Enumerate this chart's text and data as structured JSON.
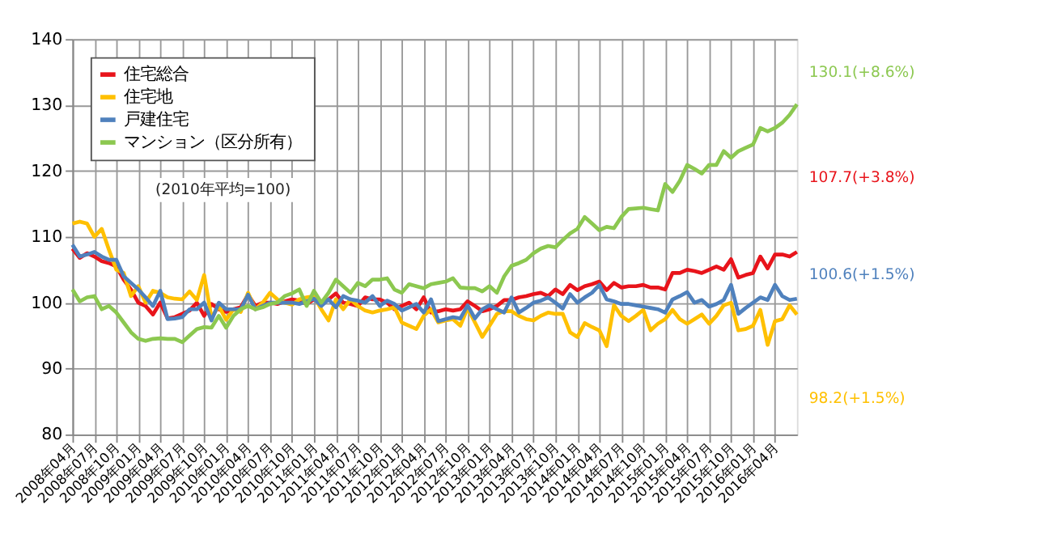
{
  "chart_data": {
    "type": "line",
    "categories": [
      "2008年04月",
      null,
      null,
      "2008年07月",
      null,
      null,
      "2008年10月",
      null,
      null,
      "2009年01月",
      null,
      null,
      "2009年04月",
      null,
      null,
      "2009年07月",
      null,
      null,
      "2009年10月",
      null,
      null,
      "2010年01月",
      null,
      null,
      "2010年04月",
      null,
      null,
      "2010年07月",
      null,
      null,
      "2010年10月",
      null,
      null,
      "2011年01月",
      null,
      null,
      "2011年04月",
      null,
      null,
      "2011年07月",
      null,
      null,
      "2011年10月",
      null,
      null,
      "2012年01月",
      null,
      null,
      "2012年04月",
      null,
      null,
      "2012年07月",
      null,
      null,
      "2012年10月",
      null,
      null,
      "2013年01月",
      null,
      null,
      "2013年04月",
      null,
      null,
      "2013年07月",
      null,
      null,
      "2013年10月",
      null,
      null,
      "2014年01月",
      null,
      null,
      "2014年04月",
      null,
      null,
      "2014年07月",
      null,
      null,
      "2014年10月",
      null,
      null,
      "2015年01月",
      null,
      null,
      "2015年04月",
      null,
      null,
      "2015年07月",
      null,
      null,
      "2015年10月",
      null,
      null,
      "2016年01月",
      null,
      null,
      "2016年04月",
      null,
      null,
      null
    ],
    "series": [
      {
        "name": "住宅総合",
        "color": "#e8141b",
        "values": [
          108.2,
          106.8,
          107.5,
          107,
          106.3,
          106,
          105.5,
          103.5,
          102,
          100,
          99.5,
          98.2,
          100,
          97.6,
          97.8,
          98.3,
          98.8,
          100,
          98,
          99.8,
          99,
          98.6,
          99,
          99.3,
          101.2,
          99.5,
          100,
          100,
          99.8,
          100.2,
          100.5,
          100.3,
          99.8,
          100.5,
          100,
          100.5,
          101.4,
          100,
          99.8,
          99.5,
          100.8,
          100.5,
          100.5,
          100,
          99,
          99.5,
          100,
          99,
          100.8,
          98.5,
          98.7,
          99,
          98.8,
          99,
          100.2,
          99.5,
          98.7,
          99,
          99.5,
          100.4,
          100.4,
          100.8,
          101,
          101.3,
          101.5,
          101,
          102,
          101.3,
          102.7,
          101.9,
          102.5,
          102.8,
          103.2,
          101.9,
          103,
          102.3,
          102.5,
          102.5,
          102.7,
          102.3,
          102.3,
          102,
          104.5,
          104.5,
          105,
          104.8,
          104.5,
          105,
          105.5,
          105,
          106.6,
          103.8,
          104.2,
          104.5,
          107,
          105.2,
          107.3,
          107.3,
          107,
          107.7
        ]
      },
      {
        "name": "住宅地",
        "color": "#ffc000",
        "values": [
          112,
          112.3,
          112,
          110,
          111.2,
          108,
          105,
          104.5,
          101,
          102.5,
          100,
          101.8,
          101.5,
          100.8,
          100.6,
          100.5,
          101.7,
          100.4,
          104.2,
          97.7,
          99.5,
          97.4,
          99,
          98.6,
          101.5,
          99,
          100,
          101.5,
          100.5,
          100,
          99.7,
          100.5,
          100.8,
          101,
          99,
          97.3,
          100.5,
          99,
          100.5,
          99.5,
          98.8,
          98.5,
          98.8,
          99,
          99.3,
          97,
          96.5,
          96,
          98,
          99,
          97,
          97.3,
          97.5,
          96.5,
          99.2,
          97,
          94.8,
          96.5,
          98.3,
          98.7,
          98.7,
          98,
          97.5,
          97.3,
          98,
          98.5,
          98.3,
          98.3,
          95.5,
          94.8,
          96.9,
          96.3,
          95.8,
          93.4,
          99.6,
          98,
          97.2,
          98,
          98.9,
          95.8,
          96.8,
          97.5,
          98.9,
          97.5,
          96.8,
          97.5,
          98.2,
          96.8,
          98,
          99.6,
          100,
          95.8,
          96,
          96.5,
          98.9,
          93.6,
          97.2,
          97.5,
          99.6,
          98.2
        ]
      },
      {
        "name": "戸建住宅",
        "color": "#4f81bd",
        "values": [
          108.8,
          107,
          107.3,
          107.7,
          107,
          106.5,
          106.5,
          104,
          103,
          102,
          100.8,
          99.5,
          101.8,
          97.5,
          97.6,
          97.8,
          99,
          99,
          100,
          97.3,
          100,
          99,
          99,
          99,
          101.2,
          99,
          99.5,
          100,
          100,
          100,
          100,
          99.8,
          100.2,
          100.6,
          99.5,
          100.5,
          99.3,
          101,
          100.5,
          100.3,
          100,
          101,
          99.5,
          100.3,
          99.8,
          98.8,
          99.3,
          99.8,
          98.5,
          100.5,
          97.2,
          97.5,
          97.8,
          97.6,
          99.6,
          97.6,
          99,
          99.6,
          99,
          98.5,
          100.8,
          98.5,
          99.2,
          100,
          100.3,
          100.8,
          100,
          99.1,
          101.3,
          100,
          100.8,
          101.5,
          102.7,
          100.5,
          100.2,
          99.8,
          99.8,
          99.6,
          99.4,
          99.2,
          99,
          98.5,
          100.5,
          101,
          101.6,
          100,
          100.4,
          99.4,
          99.8,
          100.4,
          102.7,
          98.3,
          99.2,
          100,
          100.8,
          100.4,
          102.7,
          101,
          100.4,
          100.6
        ]
      },
      {
        "name": "マンション（区分所有）",
        "color": "#8cc850",
        "values": [
          102,
          100.2,
          100.8,
          101,
          99,
          99.5,
          98.5,
          97,
          95.5,
          94.5,
          94.2,
          94.5,
          94.6,
          94.5,
          94.5,
          94,
          95,
          96,
          96.3,
          96.2,
          98,
          96.2,
          98,
          99,
          99.5,
          99,
          99.3,
          99.8,
          100,
          101,
          101.4,
          102,
          99.5,
          101.8,
          100,
          101.5,
          103.5,
          102.5,
          101.5,
          103,
          102.5,
          103.5,
          103.5,
          103.7,
          102,
          101.5,
          102.8,
          102.5,
          102.2,
          102.8,
          103,
          103.2,
          103.7,
          102.3,
          102.2,
          102.2,
          101.7,
          102.5,
          101.5,
          104,
          105.6,
          106,
          106.5,
          107.5,
          108.2,
          108.6,
          108.4,
          109.5,
          110.5,
          111.2,
          113,
          112,
          111,
          111.5,
          111.3,
          113,
          114.2,
          114.3,
          114.4,
          114.2,
          114,
          118,
          116.8,
          118.5,
          120.9,
          120.3,
          119.6,
          120.9,
          120.9,
          123,
          122,
          123,
          123.5,
          124,
          126.5,
          126,
          126.5,
          127.3,
          128.5,
          130.1
        ]
      }
    ],
    "ylim": [
      80,
      140
    ],
    "yticks": [
      80,
      90,
      100,
      110,
      120,
      130,
      140
    ],
    "grid": true,
    "legend": "top left",
    "annotations": [
      "(2010年平均=100)",
      "107.7(+3.8%)",
      "98.2(+1.5%)",
      "100.6(+1.5%)",
      "130.1(+8.6%)"
    ]
  }
}
